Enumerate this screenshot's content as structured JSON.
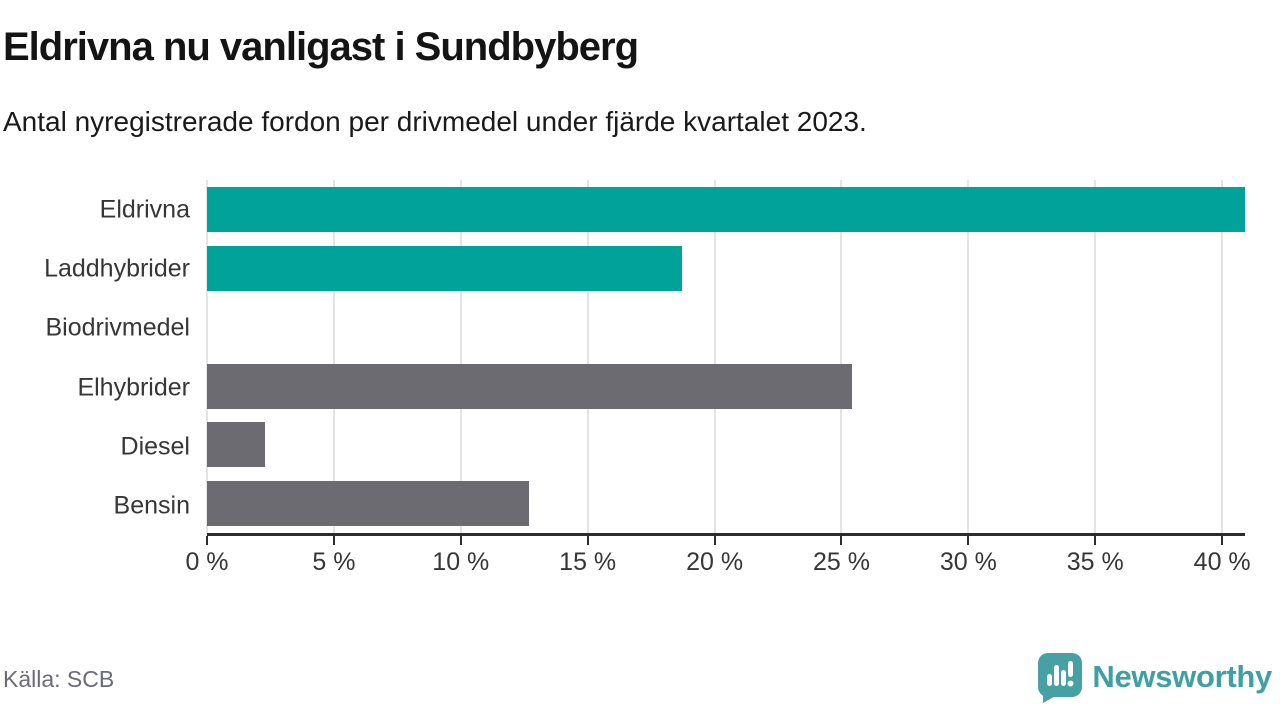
{
  "header": {
    "title": "Eldrivna nu vanligast i Sundbyberg",
    "subtitle": "Antal nyregistrerade fordon per drivmedel under fjärde kvartalet 2023."
  },
  "chart_data": {
    "type": "bar",
    "orientation": "horizontal",
    "title": "Eldrivna nu vanligast i Sundbyberg",
    "subtitle": "Antal nyregistrerade fordon per drivmedel under fjärde kvartalet 2023.",
    "categories": [
      "Eldrivna",
      "Laddhybrider",
      "Biodrivmedel",
      "Elhybrider",
      "Diesel",
      "Bensin"
    ],
    "values": [
      40.9,
      18.7,
      0,
      25.4,
      2.3,
      12.7
    ],
    "bar_colors": [
      "#00a29a",
      "#00a29a",
      "#6b6b71",
      "#6b6b71",
      "#6b6b71",
      "#6b6b71"
    ],
    "unit": "%",
    "xlim": [
      0,
      40.9
    ],
    "xticks": [
      0,
      5,
      10,
      15,
      20,
      25,
      30,
      35,
      40
    ],
    "xtick_labels": [
      "0 %",
      "5 %",
      "10 %",
      "15 %",
      "20 %",
      "25 %",
      "30 %",
      "35 %",
      "40 %"
    ],
    "grid": "vertical-on",
    "legend": "none"
  },
  "footer": {
    "source": "Källa: SCB",
    "brand": "Newsworthy"
  },
  "colors": {
    "accent_teal": "#00a29a",
    "neutral_gray": "#6b6b71",
    "brand_teal": "#47a0a3",
    "axis_line": "#2d2d2d",
    "gridline": "#e4e4e4"
  }
}
